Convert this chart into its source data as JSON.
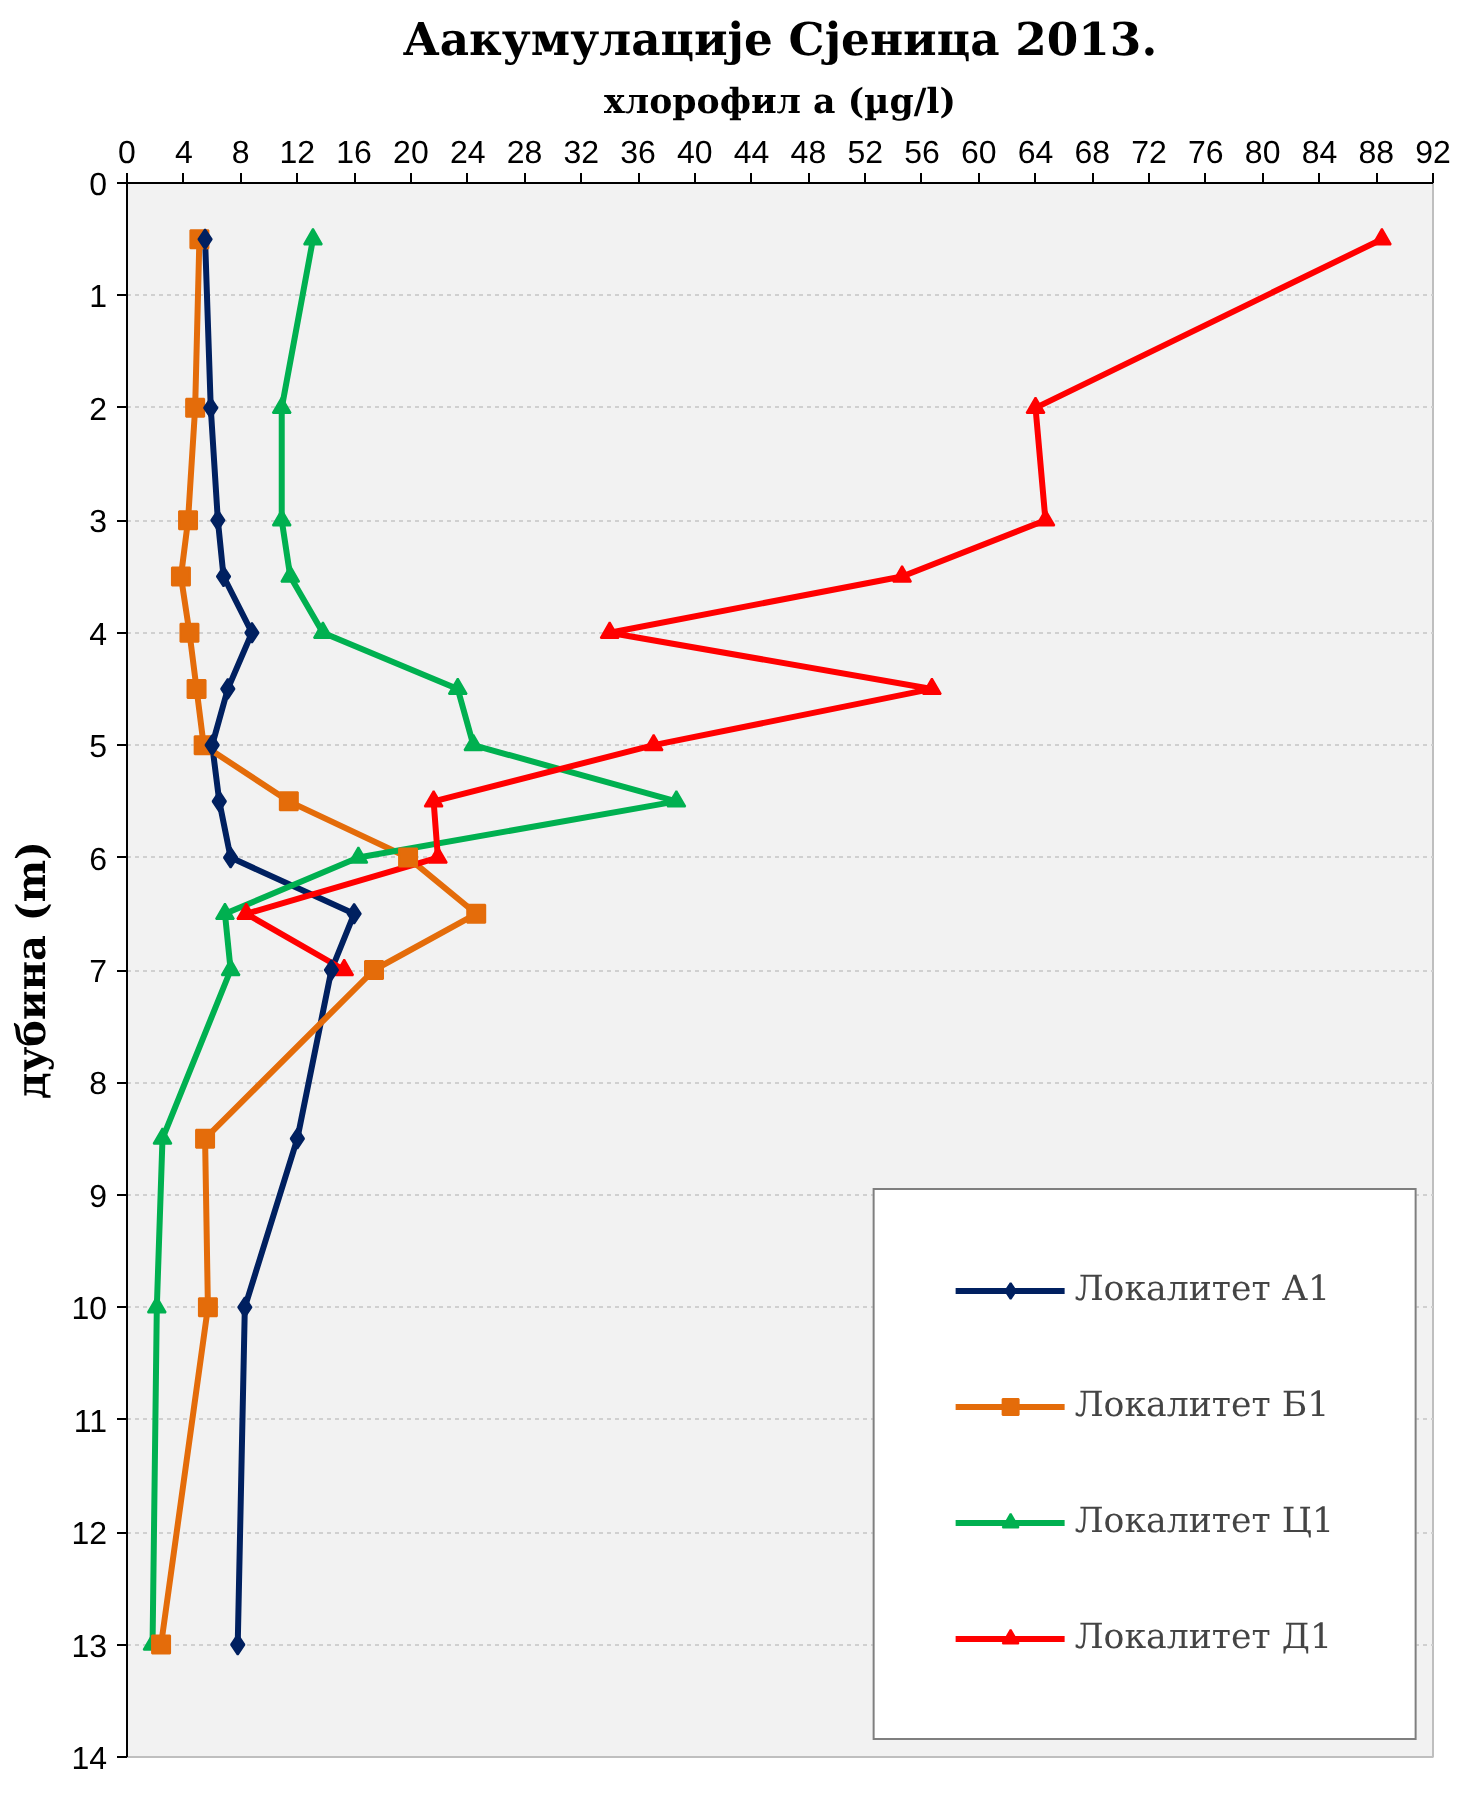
{
  "chart_data": {
    "type": "line",
    "title": "Аакумулације Сјеница 2013.",
    "xlabel": "хлорофил а (µg/l)",
    "ylabel": "дубина (m)",
    "orientation": "horizontal",
    "x": [
      0.5,
      2,
      3,
      3.5,
      4,
      4.5,
      5,
      5.5,
      6,
      6.5,
      7,
      8.5,
      10,
      13
    ],
    "series": [
      {
        "name": "Локалитет А1",
        "color": "#002060",
        "marker": "diamond",
        "values": [
          5.5,
          5.9,
          6.4,
          6.8,
          8.8,
          7.1,
          6.0,
          6.5,
          7.3,
          16.0,
          14.4,
          12.0,
          8.3,
          7.8
        ]
      },
      {
        "name": "Локалитет Б1",
        "color": "#e46c0a",
        "marker": "square",
        "values": [
          5.1,
          4.8,
          4.3,
          3.8,
          4.4,
          4.9,
          5.4,
          11.4,
          19.8,
          24.6,
          17.4,
          5.5,
          5.7,
          2.4
        ]
      },
      {
        "name": "Локалитет Ц1",
        "color": "#00b050",
        "marker": "triangle",
        "values": [
          13.1,
          10.9,
          10.9,
          11.5,
          13.8,
          23.3,
          24.4,
          38.7,
          16.3,
          6.9,
          7.3,
          2.5,
          2.1,
          1.8
        ]
      },
      {
        "name": "Локалитет Д1",
        "color": "#ff0000",
        "marker": "triangle",
        "values": [
          88.4,
          64.0,
          64.7,
          54.6,
          34.0,
          56.7,
          37.1,
          21.6,
          21.9,
          8.4,
          15.3,
          null,
          null,
          null
        ]
      }
    ],
    "xlim": [
      0,
      92
    ],
    "xticks": [
      0,
      4,
      8,
      12,
      16,
      20,
      24,
      28,
      32,
      36,
      40,
      44,
      48,
      52,
      56,
      60,
      64,
      68,
      72,
      76,
      80,
      84,
      88,
      92
    ],
    "ylim": [
      14,
      0
    ],
    "yticks": [
      0,
      1,
      2,
      3,
      4,
      5,
      6,
      7,
      8,
      9,
      10,
      11,
      12,
      13,
      14
    ],
    "grid": "y",
    "legend": "bottom right"
  }
}
